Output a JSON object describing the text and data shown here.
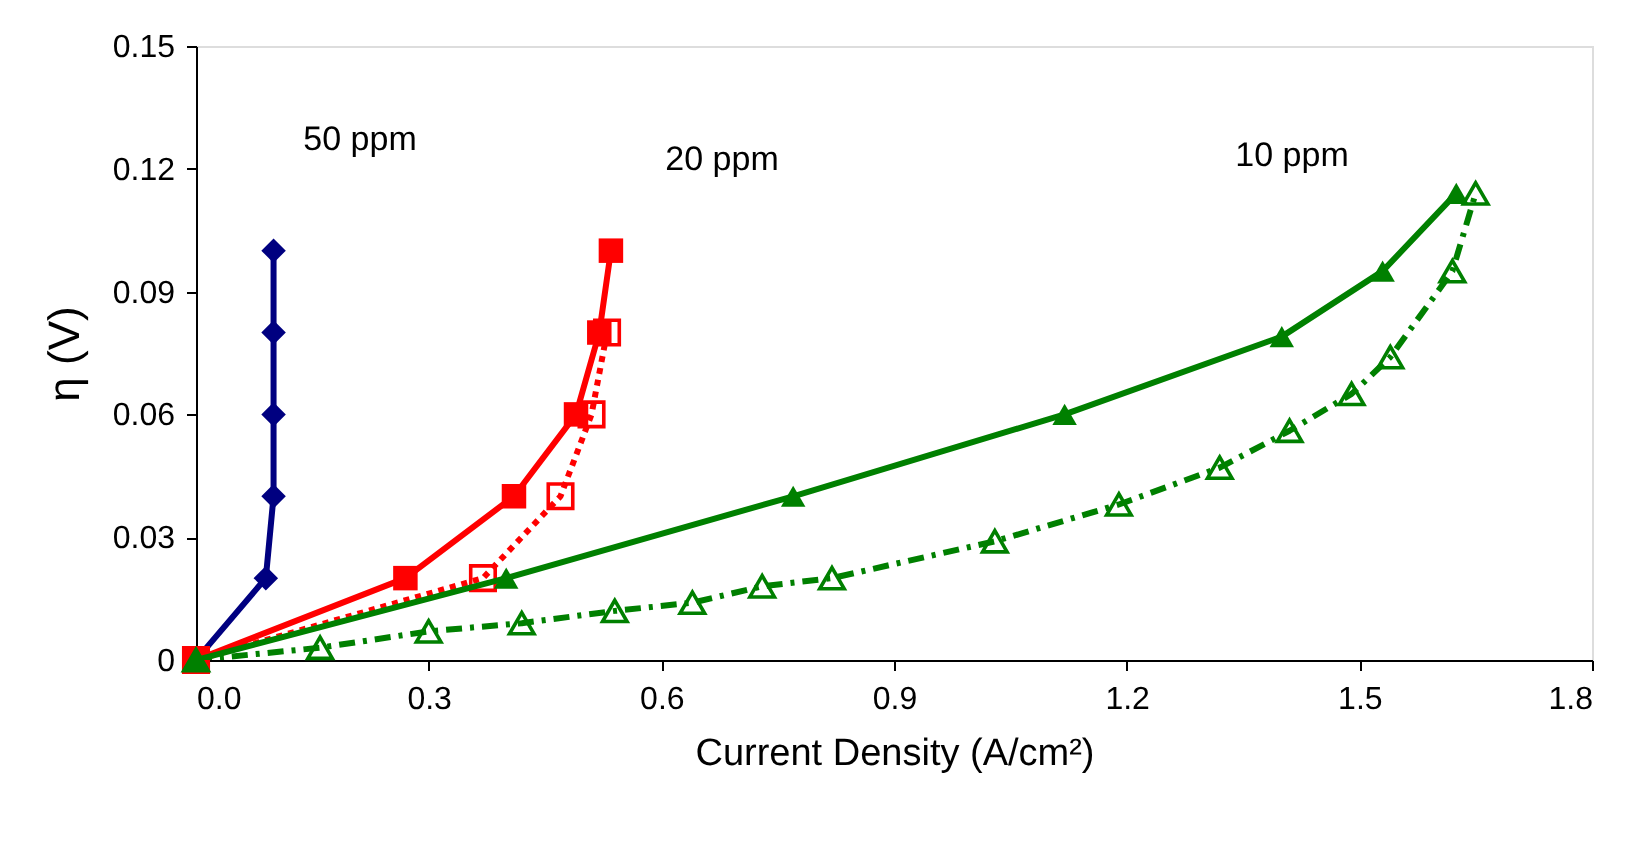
{
  "chart_data": {
    "type": "line",
    "xlabel": "Current Density (A/cm²)",
    "ylabel": "η (V)",
    "xlim": [
      0,
      1.8
    ],
    "ylim": [
      0,
      0.15
    ],
    "xticks": [
      {
        "value": 0,
        "label": "0.0"
      },
      0.3,
      0.6,
      0.9,
      1.2,
      1.5,
      1.8
    ],
    "yticks": [
      0,
      0.03,
      0.06,
      0.09,
      0.12,
      0.15
    ],
    "grid": false,
    "series": [
      {
        "color": "#000080",
        "marker": "diamond",
        "line_style": "solid",
        "x": [
          0,
          0.09,
          0.1,
          0.1,
          0.1,
          0.1
        ],
        "values": [
          0,
          0.02,
          0.04,
          0.06,
          0.08,
          0.1
        ]
      },
      {
        "color": "#ff0000",
        "marker": "square",
        "line_style": "solid",
        "x": [
          0,
          0.27,
          0.41,
          0.49,
          0.52,
          0.535
        ],
        "values": [
          0,
          0.02,
          0.04,
          0.06,
          0.08,
          0.1
        ]
      },
      {
        "color": "#ff0000",
        "marker": "square",
        "line_style": "dotted",
        "x": [
          0,
          0.37,
          0.47,
          0.51,
          0.53
        ],
        "values": [
          0,
          0.02,
          0.04,
          0.06,
          0.08
        ]
      },
      {
        "color": "#008000",
        "marker": "triangle",
        "line_style": "solid",
        "x": [
          0,
          0.4,
          0.77,
          1.12,
          1.4,
          1.53,
          1.625
        ],
        "values": [
          0,
          0.02,
          0.04,
          0.06,
          0.079,
          0.095,
          0.114
        ]
      },
      {
        "color": "#008000",
        "marker": "triangle",
        "line_style": "dashed",
        "x": [
          0,
          0.16,
          0.3,
          0.42,
          0.54,
          0.64,
          0.73,
          0.82,
          1.03,
          1.19,
          1.32,
          1.41,
          1.49,
          1.54,
          1.62,
          1.65
        ],
        "values": [
          0,
          0.003,
          0.007,
          0.009,
          0.012,
          0.014,
          0.018,
          0.02,
          0.029,
          0.038,
          0.047,
          0.056,
          0.065,
          0.074,
          0.095,
          0.114
        ]
      }
    ],
    "annotations": [
      "50 ppm",
      "20 ppm",
      "10 ppm"
    ]
  }
}
